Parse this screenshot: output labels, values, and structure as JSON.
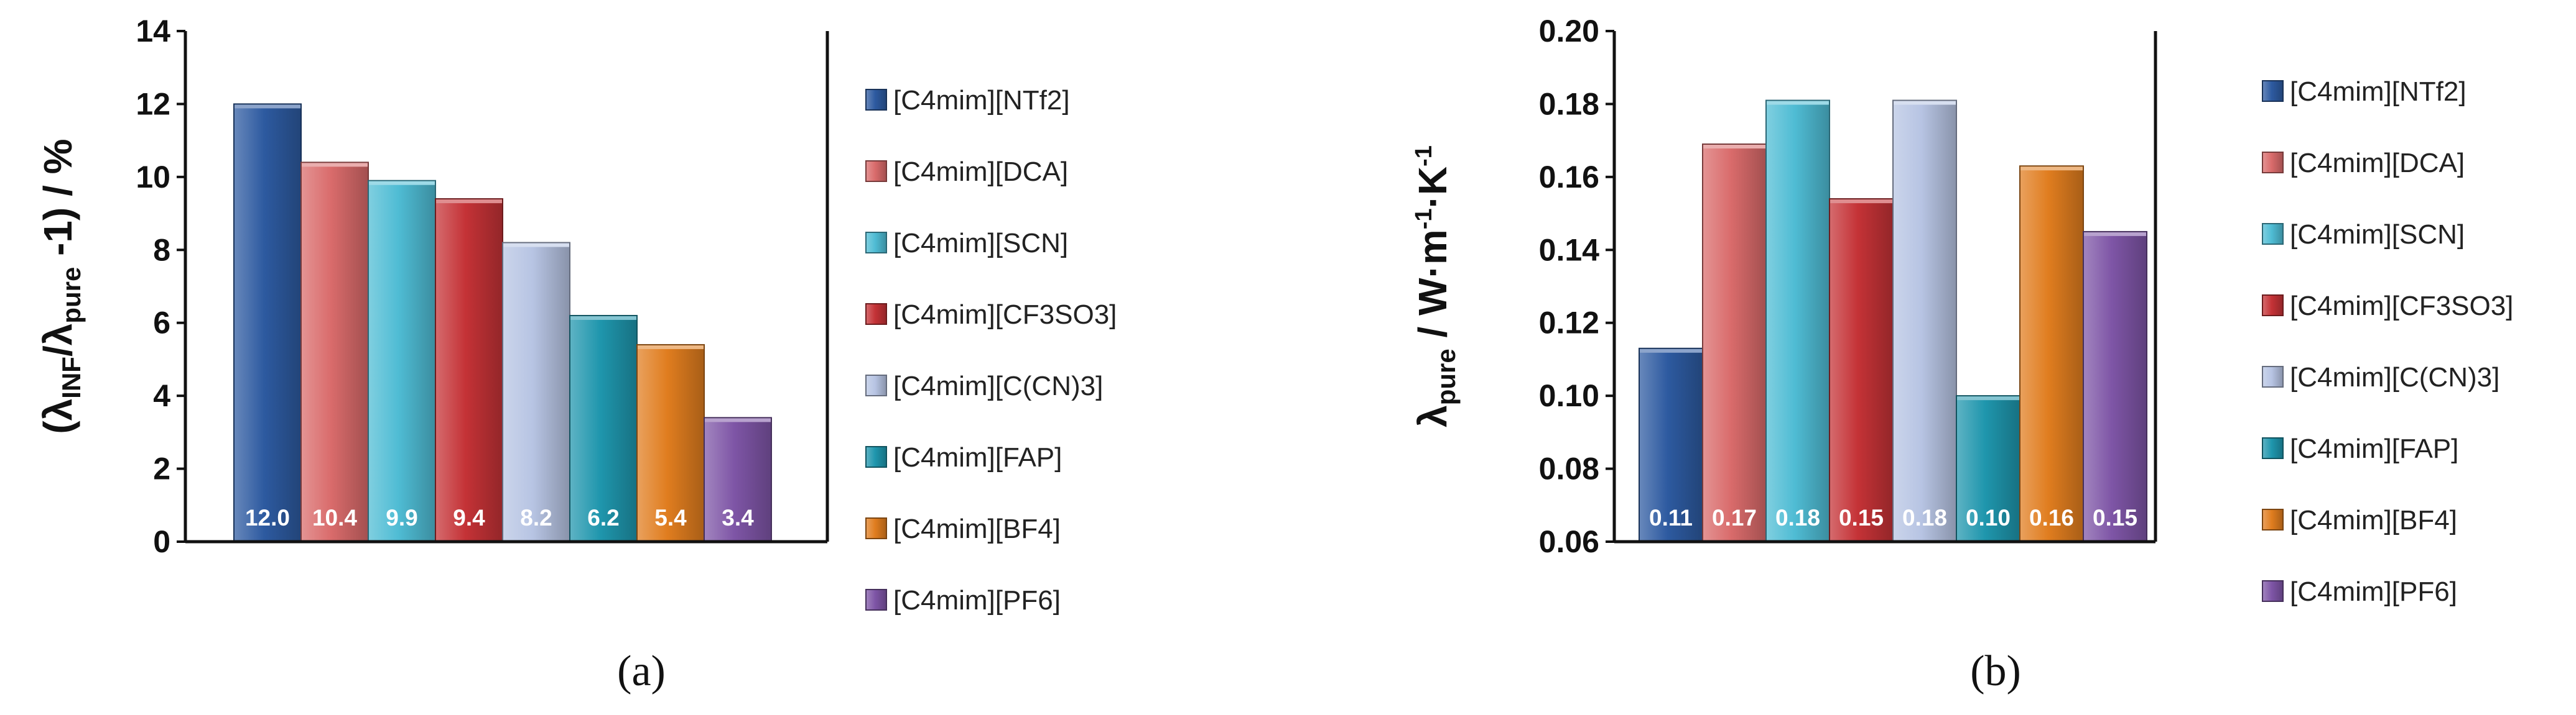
{
  "palette": [
    "#2d5aa0",
    "#d96b6b",
    "#4fbcd4",
    "#c43236",
    "#b7c4e3",
    "#1f96ad",
    "#e07d1f",
    "#7e55a6"
  ],
  "legend_labels": [
    "[C4mim][NTf2]",
    "[C4mim][DCA]",
    "[C4mim][SCN]",
    "[C4mim][CF3SO3]",
    "[C4mim][C(CN)3]",
    "[C4mim][FAP]",
    "[C4mim][BF4]",
    "[C4mim][PF6]"
  ],
  "chart_data": [
    {
      "type": "bar",
      "panel_label": "(a)",
      "ylabel": {
        "prefix": "(λ",
        "sub1": "INF",
        "mid": "/λ",
        "sub2": "pure",
        "suffix": " -1) / %"
      },
      "ylim": [
        0,
        14
      ],
      "yticks": [
        "0",
        "2",
        "4",
        "6",
        "8",
        "10",
        "12",
        "14"
      ],
      "categories": [
        "[C4mim][NTf2]",
        "[C4mim][DCA]",
        "[C4mim][SCN]",
        "[C4mim][CF3SO3]",
        "[C4mim][C(CN)3]",
        "[C4mim][FAP]",
        "[C4mim][BF4]",
        "[C4mim][PF6]"
      ],
      "values": [
        12.0,
        10.4,
        9.9,
        9.4,
        8.2,
        6.2,
        5.4,
        3.4
      ],
      "value_labels": [
        "12.0",
        "10.4",
        "9.9",
        "9.4",
        "8.2",
        "6.2",
        "5.4",
        "3.4"
      ]
    },
    {
      "type": "bar",
      "panel_label": "(b)",
      "ylabel": {
        "prefix": "λ",
        "sub1": "pure",
        "mid": " / W·m",
        "sup1": "-1",
        "mid2": "·K",
        "sup2": "-1"
      },
      "ylim": [
        0.06,
        0.2
      ],
      "yticks": [
        "0.06",
        "0.08",
        "0.10",
        "0.12",
        "0.14",
        "0.16",
        "0.18",
        "0.20"
      ],
      "categories": [
        "[C4mim][NTf2]",
        "[C4mim][DCA]",
        "[C4mim][SCN]",
        "[C4mim][CF3SO3]",
        "[C4mim][C(CN)3]",
        "[C4mim][FAP]",
        "[C4mim][BF4]",
        "[C4mim][PF6]"
      ],
      "values": [
        0.113,
        0.169,
        0.181,
        0.154,
        0.181,
        0.1,
        0.163,
        0.145
      ],
      "value_labels": [
        "0.11",
        "0.17",
        "0.18",
        "0.15",
        "0.18",
        "0.10",
        "0.16",
        "0.15"
      ]
    }
  ]
}
